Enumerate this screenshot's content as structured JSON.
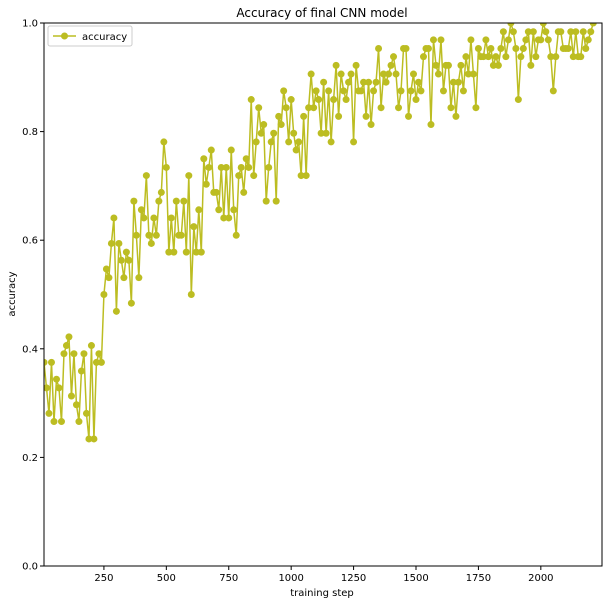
{
  "chart_data": {
    "type": "line",
    "title": "Accuracy of final CNN model",
    "xlabel": "training step",
    "ylabel": "accuracy",
    "xlim": [
      10,
      2245
    ],
    "ylim": [
      0.0,
      1.0
    ],
    "xticks": [
      250,
      500,
      750,
      1000,
      1250,
      1500,
      1750,
      2000
    ],
    "xtick_labels": [
      "250",
      "500",
      "750",
      "1000",
      "1250",
      "1500",
      "1750",
      "2000"
    ],
    "yticks": [
      0.0,
      0.2,
      0.4,
      0.6,
      0.8,
      1.0
    ],
    "ytick_labels": [
      "0.0",
      "0.2",
      "0.4",
      "0.6",
      "0.8",
      "1.0"
    ],
    "grid": false,
    "legend_position": "upper-left",
    "series": [
      {
        "name": "accuracy",
        "color": "#bcbd22",
        "marker": "circle",
        "x_start": 10,
        "x_step": 10,
        "values": [
          0.375,
          0.328,
          0.281,
          0.375,
          0.266,
          0.344,
          0.328,
          0.266,
          0.391,
          0.406,
          0.422,
          0.313,
          0.391,
          0.297,
          0.266,
          0.359,
          0.391,
          0.281,
          0.234,
          0.406,
          0.234,
          0.375,
          0.391,
          0.375,
          0.5,
          0.547,
          0.531,
          0.594,
          0.641,
          0.469,
          0.594,
          0.563,
          0.531,
          0.578,
          0.563,
          0.484,
          0.672,
          0.609,
          0.531,
          0.656,
          0.641,
          0.719,
          0.609,
          0.594,
          0.641,
          0.609,
          0.672,
          0.688,
          0.781,
          0.734,
          0.578,
          0.641,
          0.578,
          0.672,
          0.609,
          0.609,
          0.672,
          0.578,
          0.719,
          0.5,
          0.625,
          0.578,
          0.656,
          0.578,
          0.75,
          0.703,
          0.734,
          0.766,
          0.688,
          0.688,
          0.656,
          0.734,
          0.641,
          0.734,
          0.641,
          0.766,
          0.656,
          0.609,
          0.719,
          0.734,
          0.688,
          0.75,
          0.734,
          0.859,
          0.719,
          0.781,
          0.844,
          0.797,
          0.813,
          0.672,
          0.734,
          0.781,
          0.797,
          0.672,
          0.828,
          0.813,
          0.875,
          0.844,
          0.781,
          0.859,
          0.797,
          0.766,
          0.781,
          0.719,
          0.828,
          0.719,
          0.844,
          0.906,
          0.844,
          0.875,
          0.859,
          0.797,
          0.891,
          0.797,
          0.875,
          0.781,
          0.859,
          0.922,
          0.828,
          0.906,
          0.875,
          0.859,
          0.891,
          0.906,
          0.781,
          0.922,
          0.875,
          0.875,
          0.891,
          0.828,
          0.891,
          0.813,
          0.875,
          0.891,
          0.953,
          0.844,
          0.906,
          0.891,
          0.906,
          0.922,
          0.938,
          0.906,
          0.844,
          0.875,
          0.953,
          0.953,
          0.828,
          0.875,
          0.906,
          0.859,
          0.891,
          0.875,
          0.938,
          0.953,
          0.953,
          0.813,
          0.969,
          0.922,
          0.906,
          0.969,
          0.875,
          0.922,
          0.922,
          0.844,
          0.891,
          0.828,
          0.891,
          0.922,
          0.875,
          0.938,
          0.906,
          0.969,
          0.906,
          0.844,
          0.953,
          0.938,
          0.938,
          0.969,
          0.938,
          0.953,
          0.922,
          0.938,
          0.922,
          0.953,
          0.984,
          0.938,
          0.969,
          1.0,
          0.984,
          0.953,
          0.859,
          0.938,
          0.953,
          0.969,
          0.984,
          0.922,
          0.984,
          0.938,
          0.969,
          0.969,
          1.0,
          0.984,
          0.969,
          0.938,
          0.875,
          0.938,
          0.984,
          0.984,
          0.953,
          0.953,
          0.953,
          0.984,
          0.938,
          0.984,
          0.938,
          0.938,
          0.984,
          0.953,
          0.969,
          0.984,
          1.0
        ]
      }
    ]
  }
}
